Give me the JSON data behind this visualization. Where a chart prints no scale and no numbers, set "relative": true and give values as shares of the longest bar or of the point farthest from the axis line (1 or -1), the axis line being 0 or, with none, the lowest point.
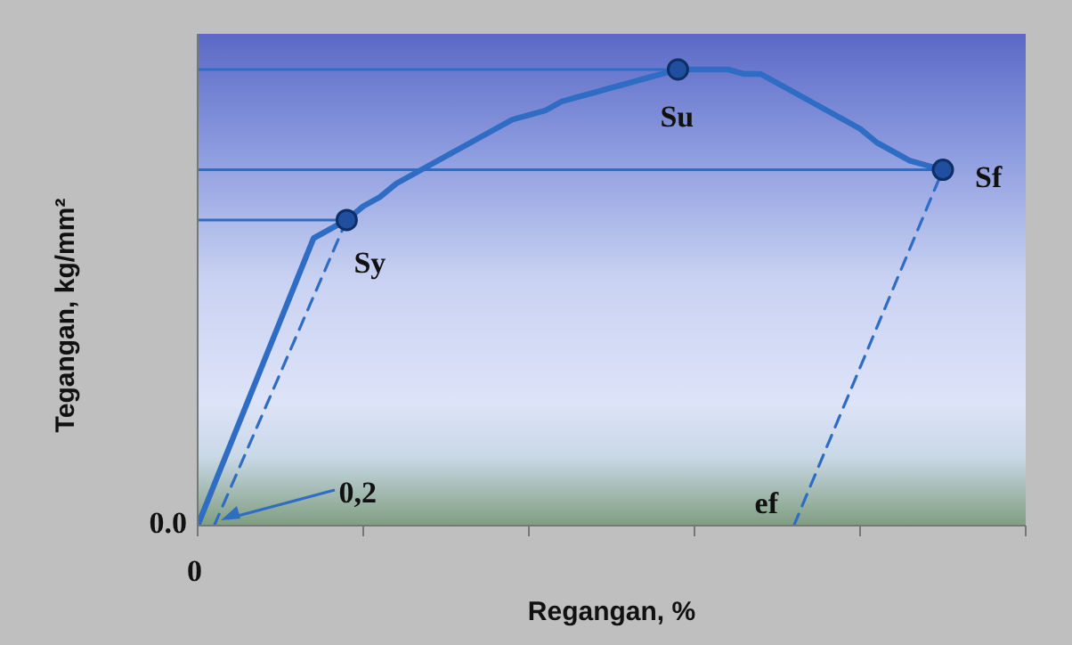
{
  "chart_data": {
    "type": "line",
    "relative": true,
    "xlabel": "Regangan, %",
    "ylabel": "Tegangan, kg/mm²",
    "categories": [
      null,
      null,
      null,
      null,
      null,
      null,
      null,
      null,
      null,
      null,
      null,
      null,
      null,
      null,
      null,
      null,
      null,
      null,
      null,
      null,
      null,
      null,
      null,
      null,
      null,
      null,
      null,
      null,
      null,
      null,
      null,
      null,
      null,
      null,
      null,
      null,
      null,
      null,
      null,
      null,
      null,
      null,
      null,
      null,
      null,
      null,
      null,
      null,
      null,
      null,
      null
    ],
    "series": [
      {
        "color": "#2f6cc4",
        "line_style": "solid",
        "values": [
          0,
          0.09,
          0.18,
          0.27,
          0.36,
          0.45,
          0.54,
          0.63,
          0.65,
          0.67,
          0.7,
          0.72,
          0.75,
          0.77,
          0.79,
          0.81,
          0.83,
          0.85,
          0.87,
          0.89,
          0.9,
          0.91,
          0.93,
          0.94,
          0.95,
          0.96,
          0.97,
          0.98,
          0.99,
          1,
          1,
          1,
          1,
          0.99,
          0.99,
          0.97,
          0.95,
          0.93,
          0.91,
          0.89,
          0.87,
          0.84,
          0.82,
          0.8,
          0.79,
          0.78,
          null,
          null,
          null,
          null,
          null
        ]
      },
      {
        "color": "#2f6cc4",
        "marker": "none",
        "line_style": "dashed",
        "values": [
          null,
          0,
          null,
          null,
          null,
          null,
          null,
          null,
          null,
          0.67,
          null,
          null,
          null,
          null,
          null,
          null,
          null,
          null,
          null,
          null,
          null,
          null,
          null,
          null,
          null,
          null,
          null,
          null,
          null,
          null,
          null,
          null,
          null,
          null,
          null,
          null,
          null,
          null,
          null,
          null,
          null,
          null,
          null,
          null,
          null,
          null,
          null,
          null,
          null,
          null,
          null
        ]
      },
      {
        "color": "#2f6cc4",
        "marker": "none",
        "line_style": "dashed",
        "values": [
          null,
          null,
          null,
          null,
          null,
          null,
          null,
          null,
          null,
          null,
          null,
          null,
          null,
          null,
          null,
          null,
          null,
          null,
          null,
          null,
          null,
          null,
          null,
          null,
          null,
          null,
          null,
          null,
          null,
          null,
          null,
          null,
          null,
          null,
          null,
          null,
          0,
          null,
          null,
          null,
          null,
          null,
          null,
          null,
          null,
          0.78,
          null,
          null,
          null,
          null,
          null
        ]
      }
    ],
    "ref_lines": [
      {
        "axis": "y",
        "value": 1,
        "color": "#2f6cc4"
      },
      {
        "axis": "y",
        "value": 0.78,
        "color": "#2f6cc4"
      },
      {
        "axis": "y",
        "value": 0.67,
        "color": "#2f6cc4"
      }
    ],
    "annotations": [
      "0.0",
      "0",
      "0,2",
      "ef",
      "Sy",
      "Su",
      "Sf"
    ]
  }
}
